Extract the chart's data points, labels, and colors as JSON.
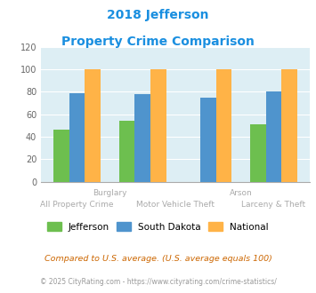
{
  "title_line1": "2018 Jefferson",
  "title_line2": "Property Crime Comparison",
  "title_color": "#1a8fe0",
  "groups": 4,
  "values": {
    "Jefferson": [
      46,
      54,
      0,
      51
    ],
    "South Dakota": [
      79,
      78,
      75,
      80
    ],
    "National": [
      100,
      100,
      100,
      100
    ]
  },
  "bar_colors": {
    "Jefferson": "#6dbf4f",
    "South Dakota": "#4f94cd",
    "National": "#ffb347"
  },
  "ylim": [
    0,
    120
  ],
  "yticks": [
    0,
    20,
    40,
    60,
    80,
    100,
    120
  ],
  "background_color": "#ddeef4",
  "grid_color": "#ffffff",
  "xlabel_top": [
    "",
    "Burglary",
    "",
    "Arson"
  ],
  "xlabel_bottom": [
    "All Property Crime",
    "Motor Vehicle Theft",
    "",
    "Larceny & Theft"
  ],
  "xlabel_color": "#aaaaaa",
  "legend_labels": [
    "Jefferson",
    "South Dakota",
    "National"
  ],
  "footnote1": "Compared to U.S. average. (U.S. average equals 100)",
  "footnote2": "© 2025 CityRating.com - https://www.cityrating.com/crime-statistics/",
  "footnote1_color": "#cc6600",
  "footnote2_color": "#999999"
}
